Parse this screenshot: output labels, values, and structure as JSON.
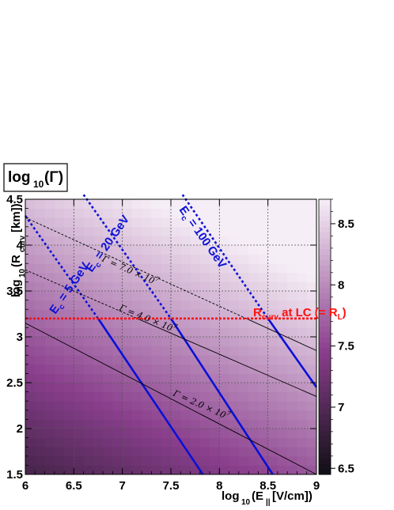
{
  "chart_data": {
    "type": "heatmap",
    "title": "log10(Γ)",
    "xlabel": "log10(E∥ [V/cm])",
    "ylabel": "log10(Rcurv [km])",
    "xlim": [
      6,
      9
    ],
    "ylim": [
      1.5,
      4.5
    ],
    "x_ticks": [
      "6",
      "6.5",
      "7",
      "7.5",
      "8",
      "8.5",
      "9"
    ],
    "y_ticks": [
      "1.5",
      "2",
      "2.5",
      "3",
      "3.5",
      "4",
      "4.5"
    ],
    "grid": true,
    "colorbar": {
      "range": [
        6.45,
        8.7
      ],
      "ticks": [
        "6.5",
        "7",
        "7.5",
        "8",
        "8.5"
      ],
      "colors": {
        "low": "#0f0f14",
        "mid": "#8a3f8d",
        "high": "#f6eef6"
      }
    },
    "heatmap_model": "log10(Γ) = 0.25*log10(E∥) + 0.5*log10(Rcurv) + 4.63",
    "curves": [
      {
        "name": "Ec = 5 GeV",
        "color": "#0b10d8",
        "style": "solid+dotted",
        "points": [
          [
            6.0,
            4.32
          ],
          [
            6.75,
            3.2
          ],
          [
            7.83,
            1.5
          ]
        ]
      },
      {
        "name": "Ec = 20 GeV",
        "color": "#0b10d8",
        "style": "solid+dotted",
        "points": [
          [
            6.6,
            4.55
          ],
          [
            7.5,
            3.2
          ],
          [
            8.55,
            1.5
          ]
        ]
      },
      {
        "name": "Ec = 100 GeV",
        "color": "#0b10d8",
        "style": "solid+dotted",
        "points": [
          [
            7.62,
            4.55
          ],
          [
            8.5,
            3.2
          ],
          [
            9.0,
            2.45
          ]
        ]
      },
      {
        "name": "Γ = 2.0 × 10^7",
        "color": "#000000",
        "style": "solid",
        "points": [
          [
            6.0,
            3.15
          ],
          [
            9.0,
            1.5
          ]
        ]
      },
      {
        "name": "Γ = 4.0 × 10^7",
        "color": "#000000",
        "style": "dashed+solid",
        "points": [
          [
            6.0,
            3.73
          ],
          [
            9.0,
            2.35
          ]
        ]
      },
      {
        "name": "Γ = 7.0 × 10^7",
        "color": "#000000",
        "style": "dashed+solid",
        "points": [
          [
            6.0,
            4.3
          ],
          [
            9.0,
            2.85
          ]
        ]
      }
    ],
    "hline": {
      "name": "Rcurv at LC (= RL)",
      "y": 3.2,
      "color": "#ff1010",
      "style": "dotted"
    },
    "annotations": {
      "title_text": "log10(Γ)",
      "ec5": "Ec = 5 GeV",
      "ec20": "Ec = 20 GeV",
      "ec100": "Ec = 100 GeV",
      "g2": "Γ = 2.0 × 10⁷",
      "g4": "Γ = 4.0 × 10⁷",
      "g7": "Γ = 7.0 × 10⁷",
      "rl": "Rcurv at LC (= RL)"
    }
  }
}
